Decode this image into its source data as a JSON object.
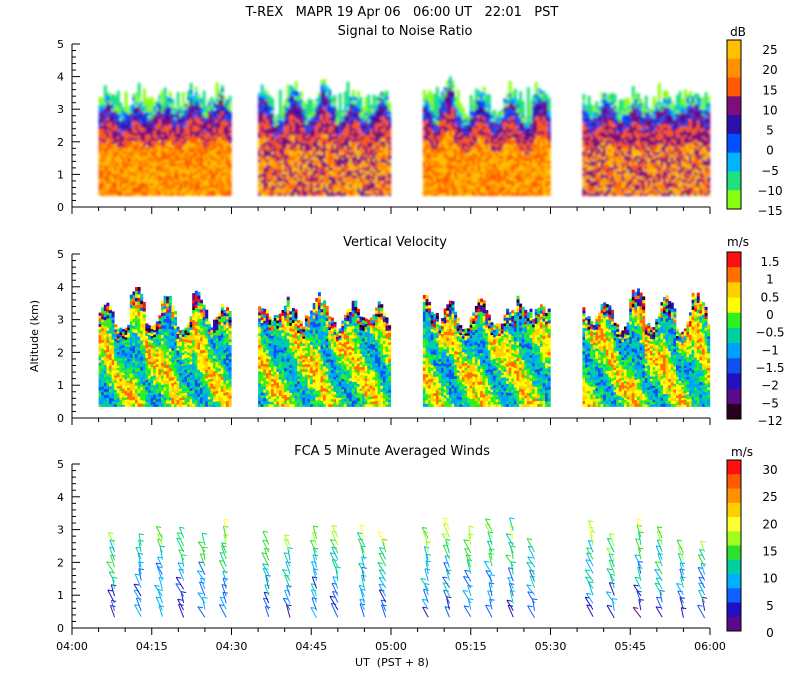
{
  "chart_data": {
    "title": "T-REX   MAPR 19 Apr 06   06:00 UT   22:01   PST",
    "xlabel": "UT  (PST + 8)",
    "ylabel": "Altitude (km)",
    "x_ticks": [
      "04:00",
      "04:15",
      "04:30",
      "04:45",
      "05:00",
      "05:15",
      "05:30",
      "05:45",
      "06:00"
    ],
    "xlim_minutes": [
      0,
      120
    ],
    "data_segments_minutes": [
      [
        5,
        30
      ],
      [
        35,
        60
      ],
      [
        66,
        90
      ],
      [
        96,
        120
      ]
    ],
    "panels": [
      {
        "type": "heatmap",
        "title": "Signal to Noise Ratio",
        "unit": "dB",
        "ylim": [
          0,
          5
        ],
        "y_ticks": [
          "0",
          "1",
          "2",
          "3",
          "4",
          "5"
        ],
        "colorbar": {
          "labels": [
            "25",
            "20",
            "15",
            "10",
            "5",
            "0",
            "−5",
            "−10",
            "−15"
          ],
          "colors": [
            "#ffc000",
            "#ff9000",
            "#ff5a00",
            "#7d0f7d",
            "#2a10a8",
            "#0050ff",
            "#00b4ff",
            "#20e080",
            "#88ff10"
          ]
        },
        "echo_top_km": [
          3.1,
          3.2,
          3.0,
          3.3,
          3.0,
          3.4,
          3.1,
          3.6,
          3.0,
          3.2
        ],
        "noise_top_km": [
          3.6,
          3.4,
          3.8,
          3.5,
          3.6,
          3.9,
          3.5,
          3.7,
          3.4,
          3.6
        ]
      },
      {
        "type": "heatmap",
        "title": "Vertical Velocity",
        "unit": "m/s",
        "ylim": [
          0,
          5
        ],
        "y_ticks": [
          "0",
          "1",
          "2",
          "3",
          "4",
          "5"
        ],
        "colorbar": {
          "labels": [
            "1.5",
            "1",
            "0.5",
            "0",
            "−0.5",
            "−1",
            "−1.5",
            "−2",
            "−5",
            "−12"
          ],
          "colors": [
            "#ff1010",
            "#ff7000",
            "#ffd000",
            "#ffff00",
            "#30f020",
            "#00d0a0",
            "#00a0ff",
            "#1050f0",
            "#2010c0",
            "#5a0a8a",
            "#2a0020"
          ]
        },
        "echo_top_km": [
          3.2,
          3.0,
          3.6,
          3.1,
          3.4,
          3.0,
          3.5,
          3.2,
          3.0,
          3.3
        ]
      },
      {
        "type": "scatter",
        "title": "FCA 5 Minute Averaged Winds",
        "unit": "m/s",
        "ylim": [
          0,
          5
        ],
        "y_ticks": [
          "0",
          "1",
          "2",
          "3",
          "4",
          "5"
        ],
        "colorbar": {
          "labels": [
            "30",
            "25",
            "20",
            "15",
            "10",
            "5",
            "0"
          ],
          "colors": [
            "#ff1010",
            "#ff5a00",
            "#ff9000",
            "#ffd000",
            "#ffff30",
            "#a0ff20",
            "#30e030",
            "#00d0a0",
            "#00b0ff",
            "#1060ff",
            "#2010c0",
            "#5a0a8a"
          ]
        },
        "profile_times_minutes": [
          8,
          13,
          17,
          21,
          25,
          29,
          37,
          41,
          46,
          50,
          55,
          59,
          67,
          71,
          75,
          79,
          83,
          87,
          98,
          102,
          107,
          111,
          115,
          119
        ]
      }
    ]
  }
}
